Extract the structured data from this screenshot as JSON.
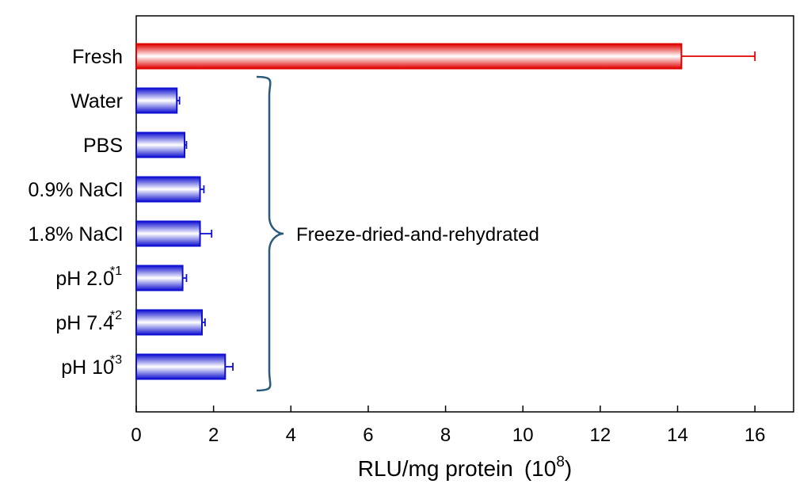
{
  "chart_data": {
    "type": "bar",
    "orientation": "horizontal",
    "categories": [
      {
        "label": "Fresh",
        "sup": ""
      },
      {
        "label": "Water",
        "sup": ""
      },
      {
        "label": "PBS",
        "sup": ""
      },
      {
        "label": "0.9% NaCl",
        "sup": ""
      },
      {
        "label": "1.8% NaCl",
        "sup": ""
      },
      {
        "label": "pH 2.0",
        "sup": "*1"
      },
      {
        "label": "pH 7.4",
        "sup": "*2"
      },
      {
        "label": "pH 10",
        "sup": "*3"
      }
    ],
    "values": [
      14.1,
      1.05,
      1.25,
      1.65,
      1.65,
      1.2,
      1.7,
      2.3
    ],
    "errors": [
      1.9,
      0.07,
      0.05,
      0.1,
      0.3,
      0.1,
      0.08,
      0.2
    ],
    "bar_colors": [
      "#e00000",
      "#1010d0",
      "#1010d0",
      "#1010d0",
      "#1010d0",
      "#1010d0",
      "#1010d0",
      "#1010d0"
    ],
    "xlabel": "RLU/mg protein",
    "xlabel_unit_base": "10",
    "xlabel_unit_exp": "8",
    "xlim": [
      0,
      17
    ],
    "xticks": [
      0,
      2,
      4,
      6,
      8,
      10,
      12,
      14,
      16
    ],
    "grid": false,
    "annotation": {
      "text": "Freeze-dried-and-rehydrated",
      "brace_from_category": 1,
      "brace_to_category": 7,
      "brace_color": "#2a5a7a"
    }
  }
}
